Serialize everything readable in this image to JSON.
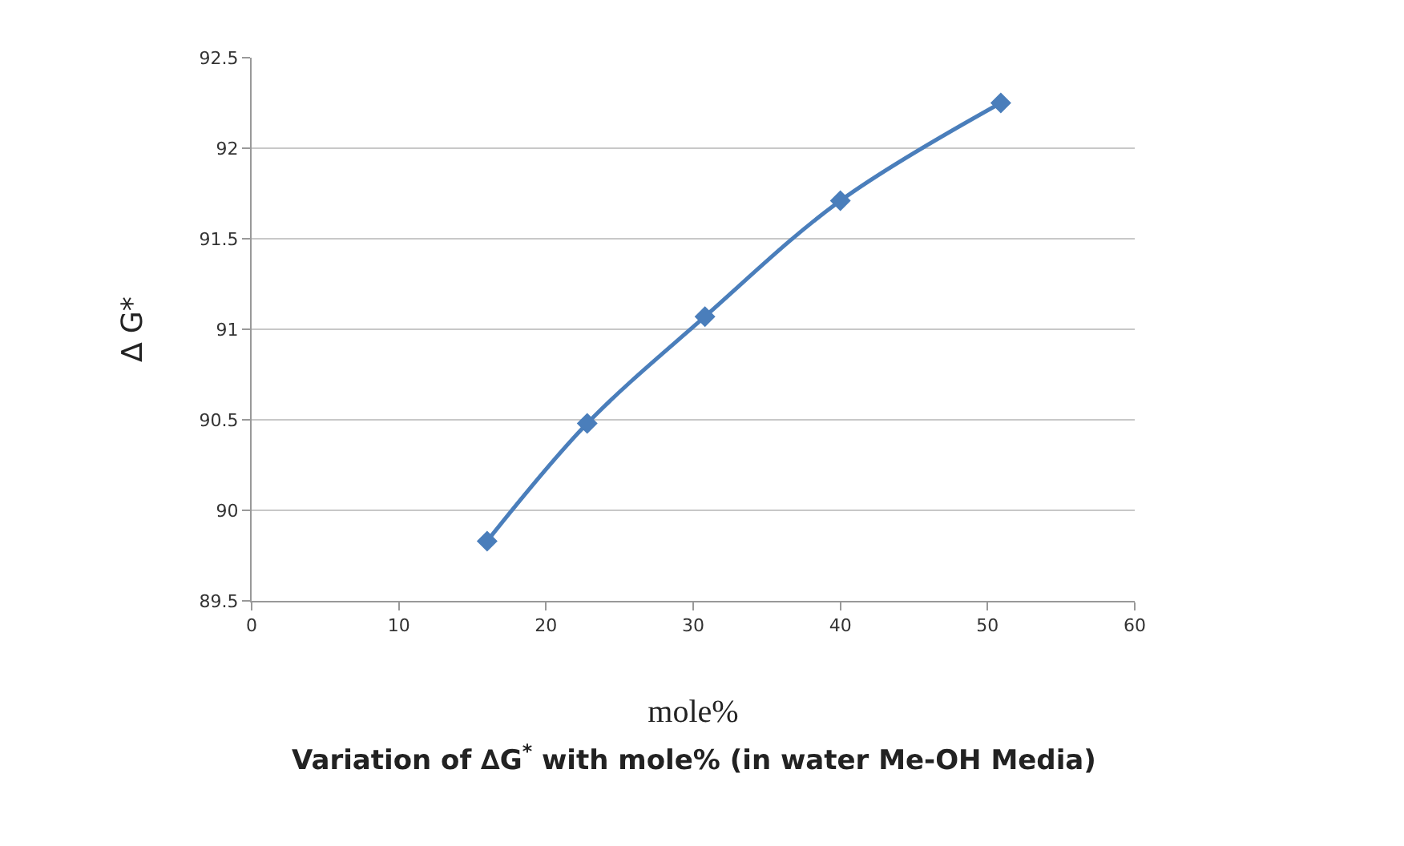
{
  "chart_data": {
    "type": "line",
    "xlabel": "mole%",
    "ylabel": "∆ G*",
    "annotations": [
      "Variation of ∆G$^{*}$ with mole% (in water Me-OH Media)"
    ],
    "x": [
      16.0,
      22.8,
      30.8,
      40.0,
      50.9
    ],
    "series": [
      {
        "color": "#4a7ebb",
        "values": [
          89.83,
          90.48,
          91.07,
          91.71,
          92.25
        ]
      }
    ],
    "xlim": [
      0,
      60
    ],
    "xticks": [
      0,
      10,
      20,
      30,
      40,
      50,
      60
    ],
    "ylim": [
      89.5,
      92.5
    ],
    "yticks": [
      89.5,
      90,
      90.5,
      91,
      91.5,
      92,
      92.5
    ],
    "grid": "y",
    "marker": "diamond",
    "line_style": "solid"
  }
}
